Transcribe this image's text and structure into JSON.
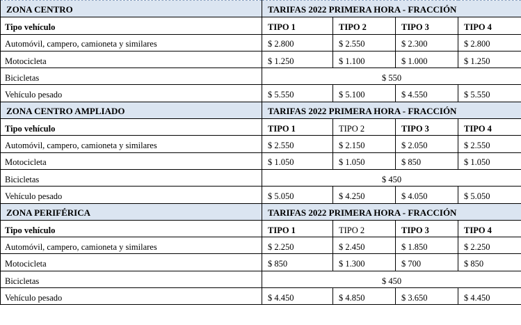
{
  "zones": [
    {
      "name": "ZONA CENTRO",
      "rates_title": "TARIFAS 2022 PRIMERA HORA - FRACCIÓN",
      "vehicle_header": "Tipo vehículo",
      "types": [
        "TIPO 1",
        "TIPO 2",
        "TIPO 3",
        "TIPO 4"
      ],
      "types_bold": [
        true,
        true,
        true,
        true
      ],
      "rows": [
        {
          "label": "Automóvil, campero, camioneta y similares",
          "prices": [
            "$ 2.800",
            "$ 2.550",
            "$ 2.300",
            "$ 2.800"
          ]
        },
        {
          "label": "Motocicleta",
          "prices": [
            "$ 1.250",
            "$ 1.100",
            "$ 1.000",
            "$ 1.250"
          ]
        },
        {
          "label": "Bicicletas",
          "single": "$ 550"
        },
        {
          "label": "Vehículo pesado",
          "prices": [
            "$ 5.550",
            "$ 5.100",
            "$ 4.550",
            "$ 5.550"
          ]
        }
      ]
    },
    {
      "name": "ZONA CENTRO AMPLIADO",
      "rates_title": "TARIFAS 2022  PRIMERA HORA - FRACCIÓN",
      "vehicle_header": "Tipo vehículo",
      "types": [
        "TIPO 1",
        "TIPO 2",
        "TIPO 3",
        "TIPO 4"
      ],
      "types_bold": [
        true,
        false,
        true,
        true
      ],
      "rows": [
        {
          "label": "Automóvil, campero, camioneta y similares",
          "prices": [
            "$ 2.550",
            "$ 2.150",
            "$ 2.050",
            "$ 2.550"
          ]
        },
        {
          "label": "Motocicleta",
          "prices": [
            "$ 1.050",
            "$ 1.050",
            "$ 850",
            "$ 1.050"
          ]
        },
        {
          "label": "Bicicletas",
          "single": "$ 450"
        },
        {
          "label": "Vehículo pesado",
          "prices": [
            "$  5.050",
            "$ 4.250",
            "$ 4.050",
            "$ 5.050"
          ]
        }
      ]
    },
    {
      "name": "ZONA PERIFÉRICA",
      "rates_title": "TARIFAS 2022  PRIMERA HORA - FRACCIÓN",
      "vehicle_header": "Tipo vehículo",
      "types": [
        "TIPO 1",
        "TIPO 2",
        "TIPO 3",
        "TIPO 4"
      ],
      "types_bold": [
        true,
        false,
        true,
        true
      ],
      "rows": [
        {
          "label": "Automóvil, campero, camioneta y similares",
          "prices": [
            "$ 2.250",
            "$ 2.450",
            "$ 1.850",
            "$ 2.250"
          ]
        },
        {
          "label": "Motocicleta",
          "prices": [
            "$ 850",
            "$ 1.300",
            "$   700",
            "$   850"
          ]
        },
        {
          "label": "Bicicletas",
          "single": "$ 450"
        },
        {
          "label": "Vehículo pesado",
          "prices": [
            "$ 4.450",
            "$ 4.850",
            "$ 3.650",
            "$ 4.450"
          ]
        }
      ]
    }
  ]
}
